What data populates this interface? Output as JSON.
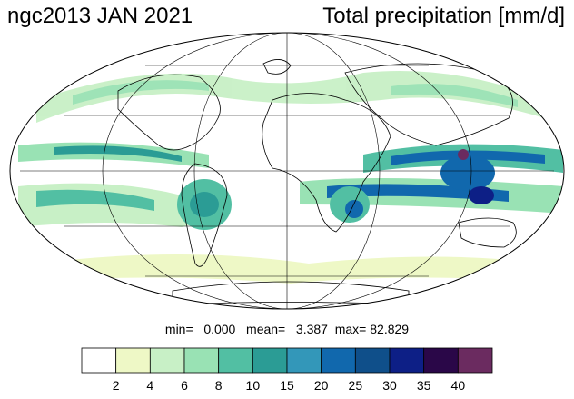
{
  "header": {
    "left_title": "ngc2013 JAN 2021",
    "right_title": "Total precipitation [mm/d]"
  },
  "stats": {
    "min_label": "min=",
    "min_value": "0.000",
    "mean_label": "mean=",
    "mean_value": "3.387",
    "max_label": "max=",
    "max_value": "82.829"
  },
  "colorbar": {
    "colors": [
      "#ffffff",
      "#eef8c6",
      "#c8f0c6",
      "#99e2b4",
      "#52bfa3",
      "#2b9c95",
      "#3397b9",
      "#1168ad",
      "#0f4f8a",
      "#0d1f86",
      "#2a0748",
      "#6b2b60"
    ],
    "ticks": [
      "2",
      "4",
      "6",
      "8",
      "10",
      "15",
      "20",
      "25",
      "30",
      "35",
      "40"
    ]
  },
  "map": {
    "projection": "Mollweide",
    "graticule_lat": [
      -60,
      -30,
      0,
      30,
      60
    ],
    "graticule_lon": [
      -120,
      -60,
      0,
      60,
      120
    ]
  }
}
